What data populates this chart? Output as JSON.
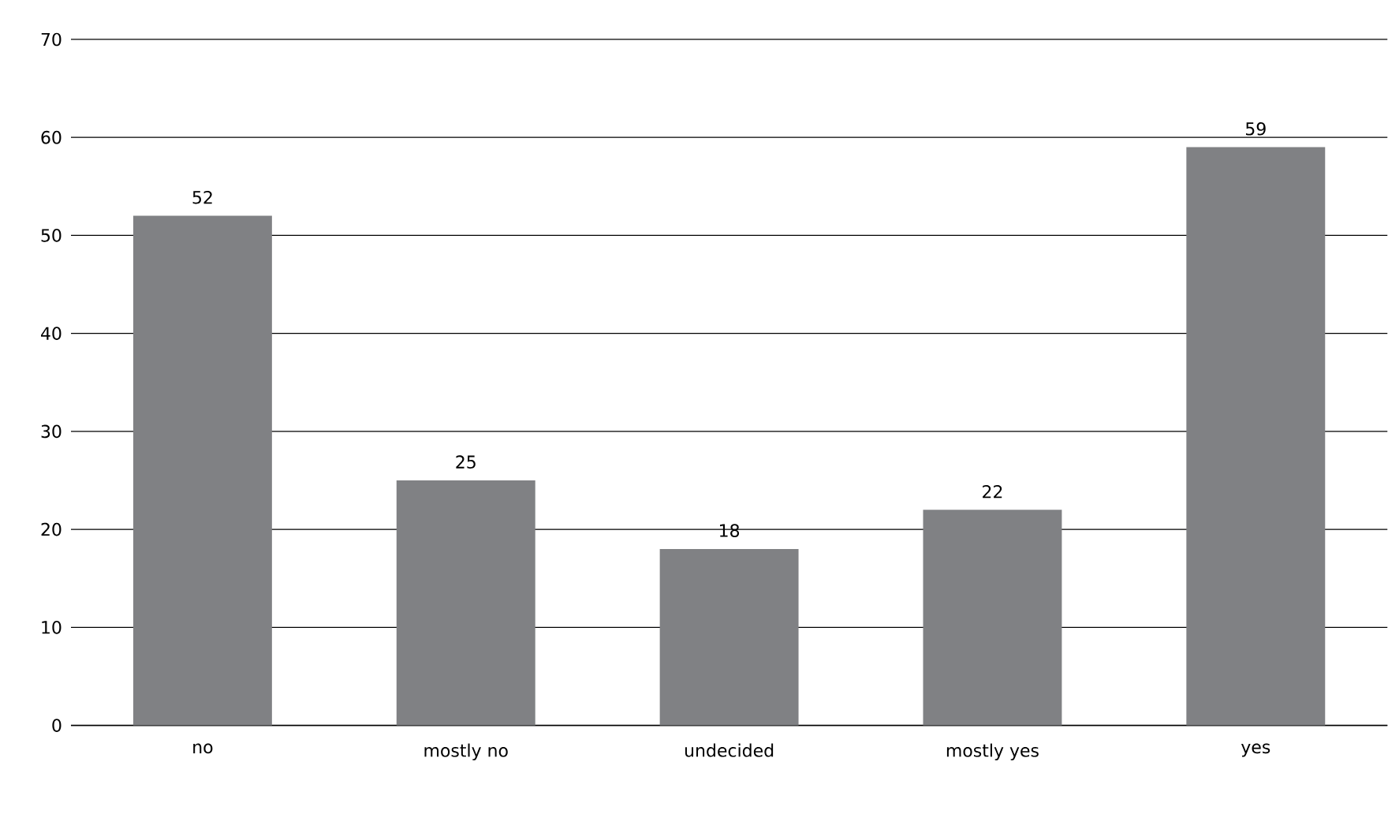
{
  "chart_data": {
    "type": "bar",
    "categories": [
      "no",
      "mostly no",
      "undecided",
      "mostly yes",
      "yes"
    ],
    "values": [
      52,
      25,
      18,
      22,
      59
    ],
    "color": "#808184",
    "ylim": [
      0,
      70
    ],
    "yticks": [
      0,
      10,
      20,
      30,
      40,
      50,
      60,
      70
    ],
    "grid": "y",
    "data_labels": true
  }
}
